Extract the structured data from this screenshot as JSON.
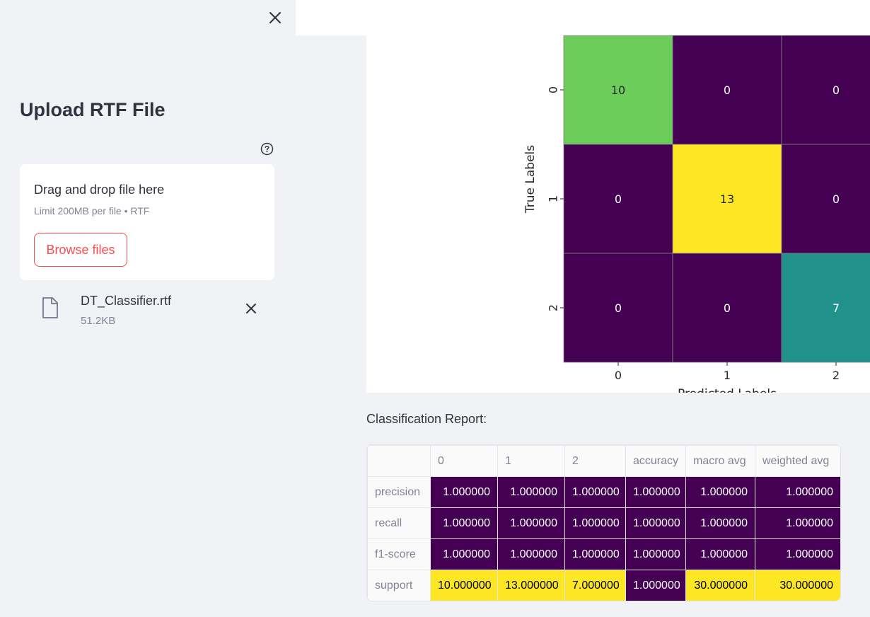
{
  "sidebar": {
    "title": "Upload RTF File",
    "uploader": {
      "drag_text": "Drag and drop file here",
      "limit_text": "Limit 200MB per file • RTF",
      "browse_label": "Browse files"
    },
    "file": {
      "name": "DT_Classifier.rtf",
      "size": "51.2KB"
    }
  },
  "chart_data": {
    "type": "heatmap",
    "xlabel": "Predicted Labels",
    "ylabel": "True Labels",
    "x_ticks": [
      "0",
      "1",
      "2"
    ],
    "y_ticks": [
      "0",
      "1",
      "2"
    ],
    "matrix": [
      [
        10,
        0,
        0
      ],
      [
        0,
        13,
        0
      ],
      [
        0,
        0,
        7
      ]
    ],
    "colormap": "viridis",
    "cell_colors": [
      [
        "#6ccd5a",
        "#440154",
        "#440154"
      ],
      [
        "#440154",
        "#fde725",
        "#440154"
      ],
      [
        "#440154",
        "#440154",
        "#21918c"
      ]
    ],
    "cell_text_colors": [
      [
        "#262626",
        "#ffffff",
        "#ffffff"
      ],
      [
        "#ffffff",
        "#262626",
        "#ffffff"
      ],
      [
        "#ffffff",
        "#ffffff",
        "#ffffff"
      ]
    ]
  },
  "report": {
    "title": "Classification Report:",
    "columns": [
      "0",
      "1",
      "2",
      "accuracy",
      "macro avg",
      "weighted avg"
    ],
    "rows": [
      {
        "label": "precision",
        "values": [
          "1.000000",
          "1.000000",
          "1.000000",
          "1.000000",
          "1.000000",
          "1.000000"
        ]
      },
      {
        "label": "recall",
        "values": [
          "1.000000",
          "1.000000",
          "1.000000",
          "1.000000",
          "1.000000",
          "1.000000"
        ]
      },
      {
        "label": "f1-score",
        "values": [
          "1.000000",
          "1.000000",
          "1.000000",
          "1.000000",
          "1.000000",
          "1.000000"
        ]
      },
      {
        "label": "support",
        "values": [
          "10.000000",
          "13.000000",
          "7.000000",
          "1.000000",
          "30.000000",
          "30.000000"
        ]
      }
    ],
    "cell_colors": [
      [
        "#440154",
        "#440154",
        "#440154",
        "#440154",
        "#440154",
        "#440154"
      ],
      [
        "#440154",
        "#440154",
        "#440154",
        "#440154",
        "#440154",
        "#440154"
      ],
      [
        "#440154",
        "#440154",
        "#440154",
        "#440154",
        "#440154",
        "#440154"
      ],
      [
        "#fde725",
        "#fde725",
        "#fde725",
        "#440154",
        "#fde725",
        "#fde725"
      ]
    ],
    "text_colors": [
      [
        "#ffffff",
        "#ffffff",
        "#ffffff",
        "#ffffff",
        "#ffffff",
        "#ffffff"
      ],
      [
        "#ffffff",
        "#ffffff",
        "#ffffff",
        "#ffffff",
        "#ffffff",
        "#ffffff"
      ],
      [
        "#ffffff",
        "#ffffff",
        "#ffffff",
        "#ffffff",
        "#ffffff",
        "#ffffff"
      ],
      [
        "#000000",
        "#000000",
        "#000000",
        "#ffffff",
        "#000000",
        "#000000"
      ]
    ]
  },
  "colors": {
    "accent": "#ff4b4b",
    "sidebar_bg": "#f0f2f6",
    "text": "#31333f",
    "muted": "#808495"
  },
  "icons": {
    "close_sidebar": "close-icon",
    "help": "help-circle-icon",
    "file": "file-icon",
    "remove_file": "close-icon"
  }
}
